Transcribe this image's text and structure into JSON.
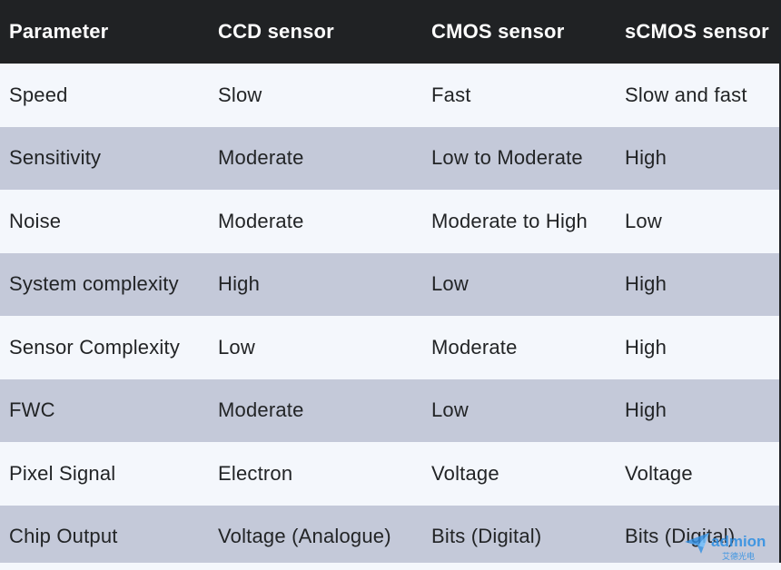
{
  "table": {
    "headers": [
      "Parameter",
      "CCD sensor",
      "CMOS sensor",
      "sCMOS sensor"
    ],
    "rows": [
      [
        "Speed",
        "Slow",
        "Fast",
        "Slow and fast"
      ],
      [
        "Sensitivity",
        "Moderate",
        "Low to Moderate",
        "High"
      ],
      [
        "Noise",
        "Moderate",
        "Moderate to High",
        "Low"
      ],
      [
        "System complexity",
        "High",
        "Low",
        "High"
      ],
      [
        "Sensor Complexity",
        "Low",
        "Moderate",
        "High"
      ],
      [
        "FWC",
        "Moderate",
        "Low",
        "High"
      ],
      [
        "Pixel Signal",
        "Electron",
        "Voltage",
        "Voltage"
      ],
      [
        "Chip Output",
        "Voltage (Analogue)",
        "Bits (Digital)",
        "Bits (Digital)"
      ]
    ]
  },
  "watermark": {
    "brand": "admion",
    "subtitle": "艾德光电"
  },
  "colors": {
    "header_bg": "#202224",
    "row_light": "#f4f7fc",
    "row_dark": "#c4c9d9",
    "text": "#222426",
    "watermark": "#2f8fe3"
  }
}
